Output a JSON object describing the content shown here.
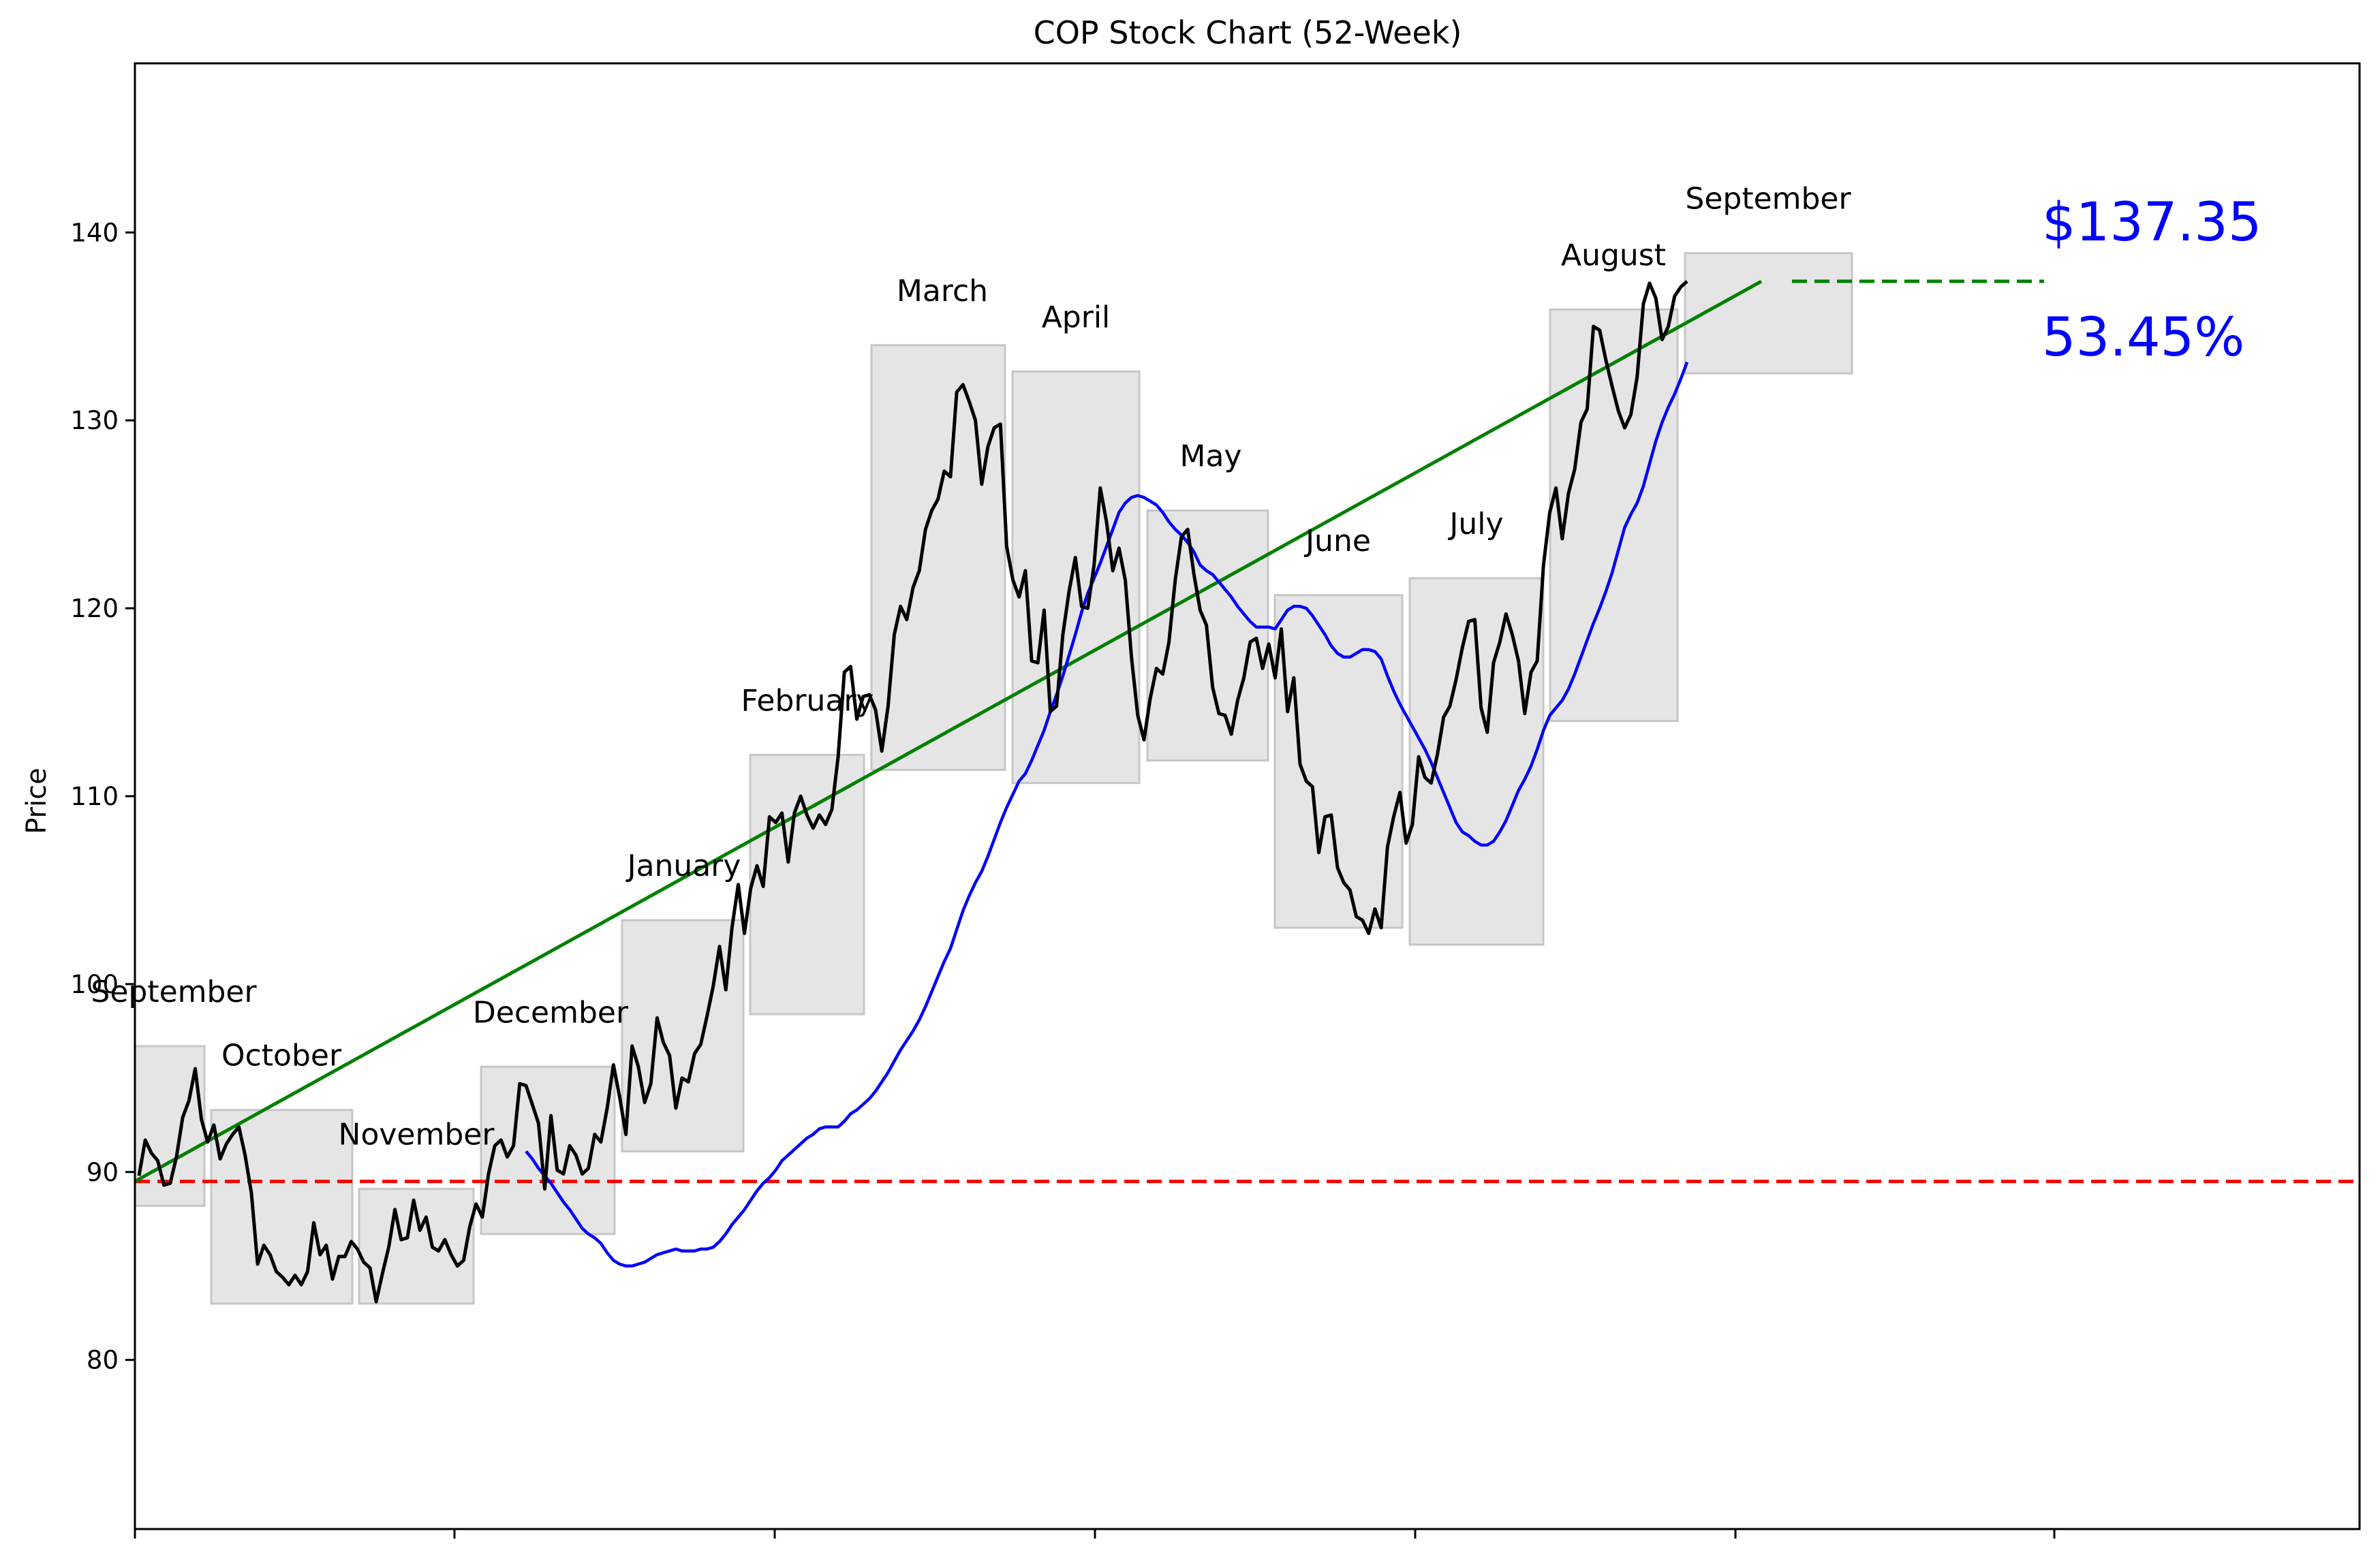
{
  "chart_data": {
    "type": "line",
    "title": "COP Stock Chart (52-Week)",
    "ylabel": "Price",
    "xlabel": "",
    "ylim": [
      71,
      149
    ],
    "yticks": [
      80,
      90,
      100,
      110,
      120,
      130,
      140
    ],
    "grid": false,
    "annotations": {
      "last_price_text": "$137.35",
      "change_pct_text": "53.45%",
      "last_price_value": 137.35,
      "start_reference_price": 89.5
    },
    "month_boxes": [
      {
        "label": "September",
        "low": 88.2,
        "high": 96.7
      },
      {
        "label": "October",
        "low": 83.0,
        "high": 93.3
      },
      {
        "label": "November",
        "low": 83.0,
        "high": 89.1
      },
      {
        "label": "December",
        "low": 86.7,
        "high": 95.6
      },
      {
        "label": "January",
        "low": 91.1,
        "high": 103.4
      },
      {
        "label": "February",
        "low": 98.4,
        "high": 112.2
      },
      {
        "label": "March",
        "low": 111.4,
        "high": 134.0
      },
      {
        "label": "April",
        "low": 110.7,
        "high": 132.6
      },
      {
        "label": "May",
        "low": 111.9,
        "high": 125.2
      },
      {
        "label": "June",
        "low": 103.0,
        "high": 120.7
      },
      {
        "label": "July",
        "low": 102.1,
        "high": 121.6
      },
      {
        "label": "August",
        "low": 114.0,
        "high": 135.9
      },
      {
        "label": "September",
        "low": 132.5,
        "high": 138.9
      }
    ],
    "series": [
      {
        "name": "",
        "color": "#000000",
        "values": [
          89.8,
          91.7,
          91.0,
          90.6,
          89.3,
          89.4,
          90.8,
          92.9,
          93.8,
          95.5,
          92.8,
          91.6,
          92.5,
          90.7,
          91.5,
          92.0,
          92.4,
          90.9,
          88.9,
          85.1,
          86.1,
          85.6,
          84.7,
          84.4,
          84.0,
          84.5,
          84.0,
          84.7,
          87.3,
          85.6,
          86.1,
          84.3,
          85.5,
          85.5,
          86.3,
          85.9,
          85.2,
          84.9,
          83.1,
          84.6,
          86.0,
          88.0,
          86.4,
          86.5,
          88.5,
          86.9,
          87.6,
          86.0,
          85.8,
          86.4,
          85.6,
          85.0,
          85.3,
          87.1,
          88.3,
          87.6,
          89.9,
          91.4,
          91.7,
          90.8,
          91.4,
          94.7,
          94.6,
          93.6,
          92.6,
          89.1,
          93.0,
          90.1,
          89.9,
          91.4,
          90.9,
          89.9,
          90.2,
          92.0,
          91.6,
          93.4,
          95.7,
          94.0,
          92.0,
          96.7,
          95.6,
          93.7,
          94.7,
          98.2,
          96.9,
          96.2,
          93.4,
          95.0,
          94.8,
          96.3,
          96.8,
          98.3,
          99.9,
          102.0,
          99.7,
          103.0,
          105.3,
          102.7,
          105.1,
          106.3,
          105.2,
          108.9,
          108.6,
          109.1,
          106.5,
          109.1,
          110.0,
          109.0,
          108.3,
          109.0,
          108.5,
          109.3,
          112.1,
          116.6,
          116.9,
          114.1,
          115.3,
          115.4,
          114.6,
          112.4,
          114.8,
          118.6,
          120.1,
          119.4,
          121.1,
          122.0,
          124.2,
          125.2,
          125.8,
          127.3,
          127.0,
          131.5,
          131.9,
          131.0,
          130.0,
          126.6,
          128.6,
          129.6,
          129.8,
          123.3,
          121.5,
          120.6,
          122.0,
          117.2,
          117.1,
          119.9,
          114.5,
          114.8,
          118.6,
          120.9,
          122.7,
          120.1,
          120.0,
          122.3,
          126.4,
          124.6,
          122.0,
          123.2,
          121.5,
          117.4,
          114.3,
          113.0,
          115.2,
          116.8,
          116.5,
          118.2,
          121.5,
          123.8,
          124.2,
          121.8,
          119.9,
          119.1,
          115.8,
          114.4,
          114.3,
          113.3,
          115.1,
          116.3,
          118.2,
          118.4,
          116.8,
          118.1,
          116.3,
          118.9,
          114.5,
          116.3,
          111.7,
          110.8,
          110.5,
          107.0,
          108.9,
          109.0,
          106.2,
          105.4,
          105.0,
          103.6,
          103.4,
          102.7,
          104.0,
          103.0,
          107.3,
          108.9,
          110.2,
          107.5,
          108.5,
          112.1,
          111.0,
          110.7,
          112.2,
          114.2,
          114.8,
          116.2,
          117.9,
          119.3,
          119.4,
          114.7,
          113.4,
          117.1,
          118.2,
          119.7,
          118.6,
          117.2,
          114.4,
          116.6,
          117.2,
          122.3,
          125.1,
          126.4,
          123.7,
          126.1,
          127.4,
          129.9,
          130.6,
          135.0,
          134.8,
          133.2,
          131.8,
          130.5,
          129.6,
          130.3,
          132.3,
          136.2,
          137.3,
          136.5,
          134.3,
          135.0,
          136.6,
          137.1,
          137.4
        ]
      },
      {
        "name": "",
        "color": "#0000ff",
        "values": [
          91.1,
          90.7,
          90.2,
          89.8,
          89.4,
          88.9,
          88.4,
          88.0,
          87.5,
          87.0,
          86.7,
          86.5,
          86.2,
          85.7,
          85.3,
          85.1,
          85.0,
          85.0,
          85.1,
          85.2,
          85.4,
          85.6,
          85.7,
          85.8,
          85.9,
          85.8,
          85.8,
          85.8,
          85.9,
          85.9,
          86.0,
          86.3,
          86.7,
          87.2,
          87.6,
          88.0,
          88.5,
          89.0,
          89.4,
          89.7,
          90.1,
          90.6,
          90.9,
          91.2,
          91.5,
          91.8,
          92.0,
          92.3,
          92.4,
          92.4,
          92.4,
          92.7,
          93.1,
          93.3,
          93.6,
          93.9,
          94.3,
          94.8,
          95.3,
          95.9,
          96.5,
          97.0,
          97.5,
          98.1,
          98.8,
          99.6,
          100.4,
          101.2,
          101.9,
          102.9,
          103.9,
          104.7,
          105.4,
          106.0,
          106.8,
          107.7,
          108.6,
          109.4,
          110.1,
          110.8,
          111.2,
          111.9,
          112.7,
          113.5,
          114.5,
          115.4,
          116.4,
          117.5,
          118.6,
          119.8,
          120.8,
          121.6,
          122.4,
          123.3,
          124.2,
          125.1,
          125.6,
          125.9,
          126.0,
          125.9,
          125.7,
          125.5,
          125.1,
          124.6,
          124.2,
          123.9,
          123.5,
          123.0,
          122.3,
          122.0,
          121.8,
          121.4,
          121.0,
          120.6,
          120.1,
          119.7,
          119.3,
          119.0,
          119.0,
          119.0,
          118.9,
          119.4,
          119.9,
          120.1,
          120.1,
          120.0,
          119.6,
          119.1,
          118.6,
          118.0,
          117.6,
          117.4,
          117.4,
          117.6,
          117.8,
          117.8,
          117.7,
          117.3,
          116.4,
          115.6,
          114.9,
          114.3,
          113.7,
          113.1,
          112.5,
          111.8,
          111.0,
          110.2,
          109.4,
          108.6,
          108.1,
          107.9,
          107.6,
          107.4,
          107.4,
          107.6,
          108.1,
          108.7,
          109.5,
          110.3,
          110.9,
          111.6,
          112.5,
          113.5,
          114.3,
          114.7,
          115.1,
          115.7,
          116.5,
          117.4,
          118.3,
          119.2,
          120.0,
          120.9,
          121.9,
          123.1,
          124.3,
          125.0,
          125.6,
          126.5,
          127.7,
          128.9,
          129.9,
          130.7,
          131.4,
          132.2,
          133.1
        ]
      }
    ],
    "reference_lines": [
      {
        "kind": "horizontal",
        "value": 89.5,
        "color": "#ff0000",
        "style": "dashed"
      },
      {
        "kind": "trend",
        "from": 89.5,
        "to": 137.4,
        "color": "#008000",
        "style": "solid"
      },
      {
        "kind": "horizontal-segment",
        "value": 137.4,
        "color": "#008000",
        "style": "dashed"
      }
    ]
  }
}
